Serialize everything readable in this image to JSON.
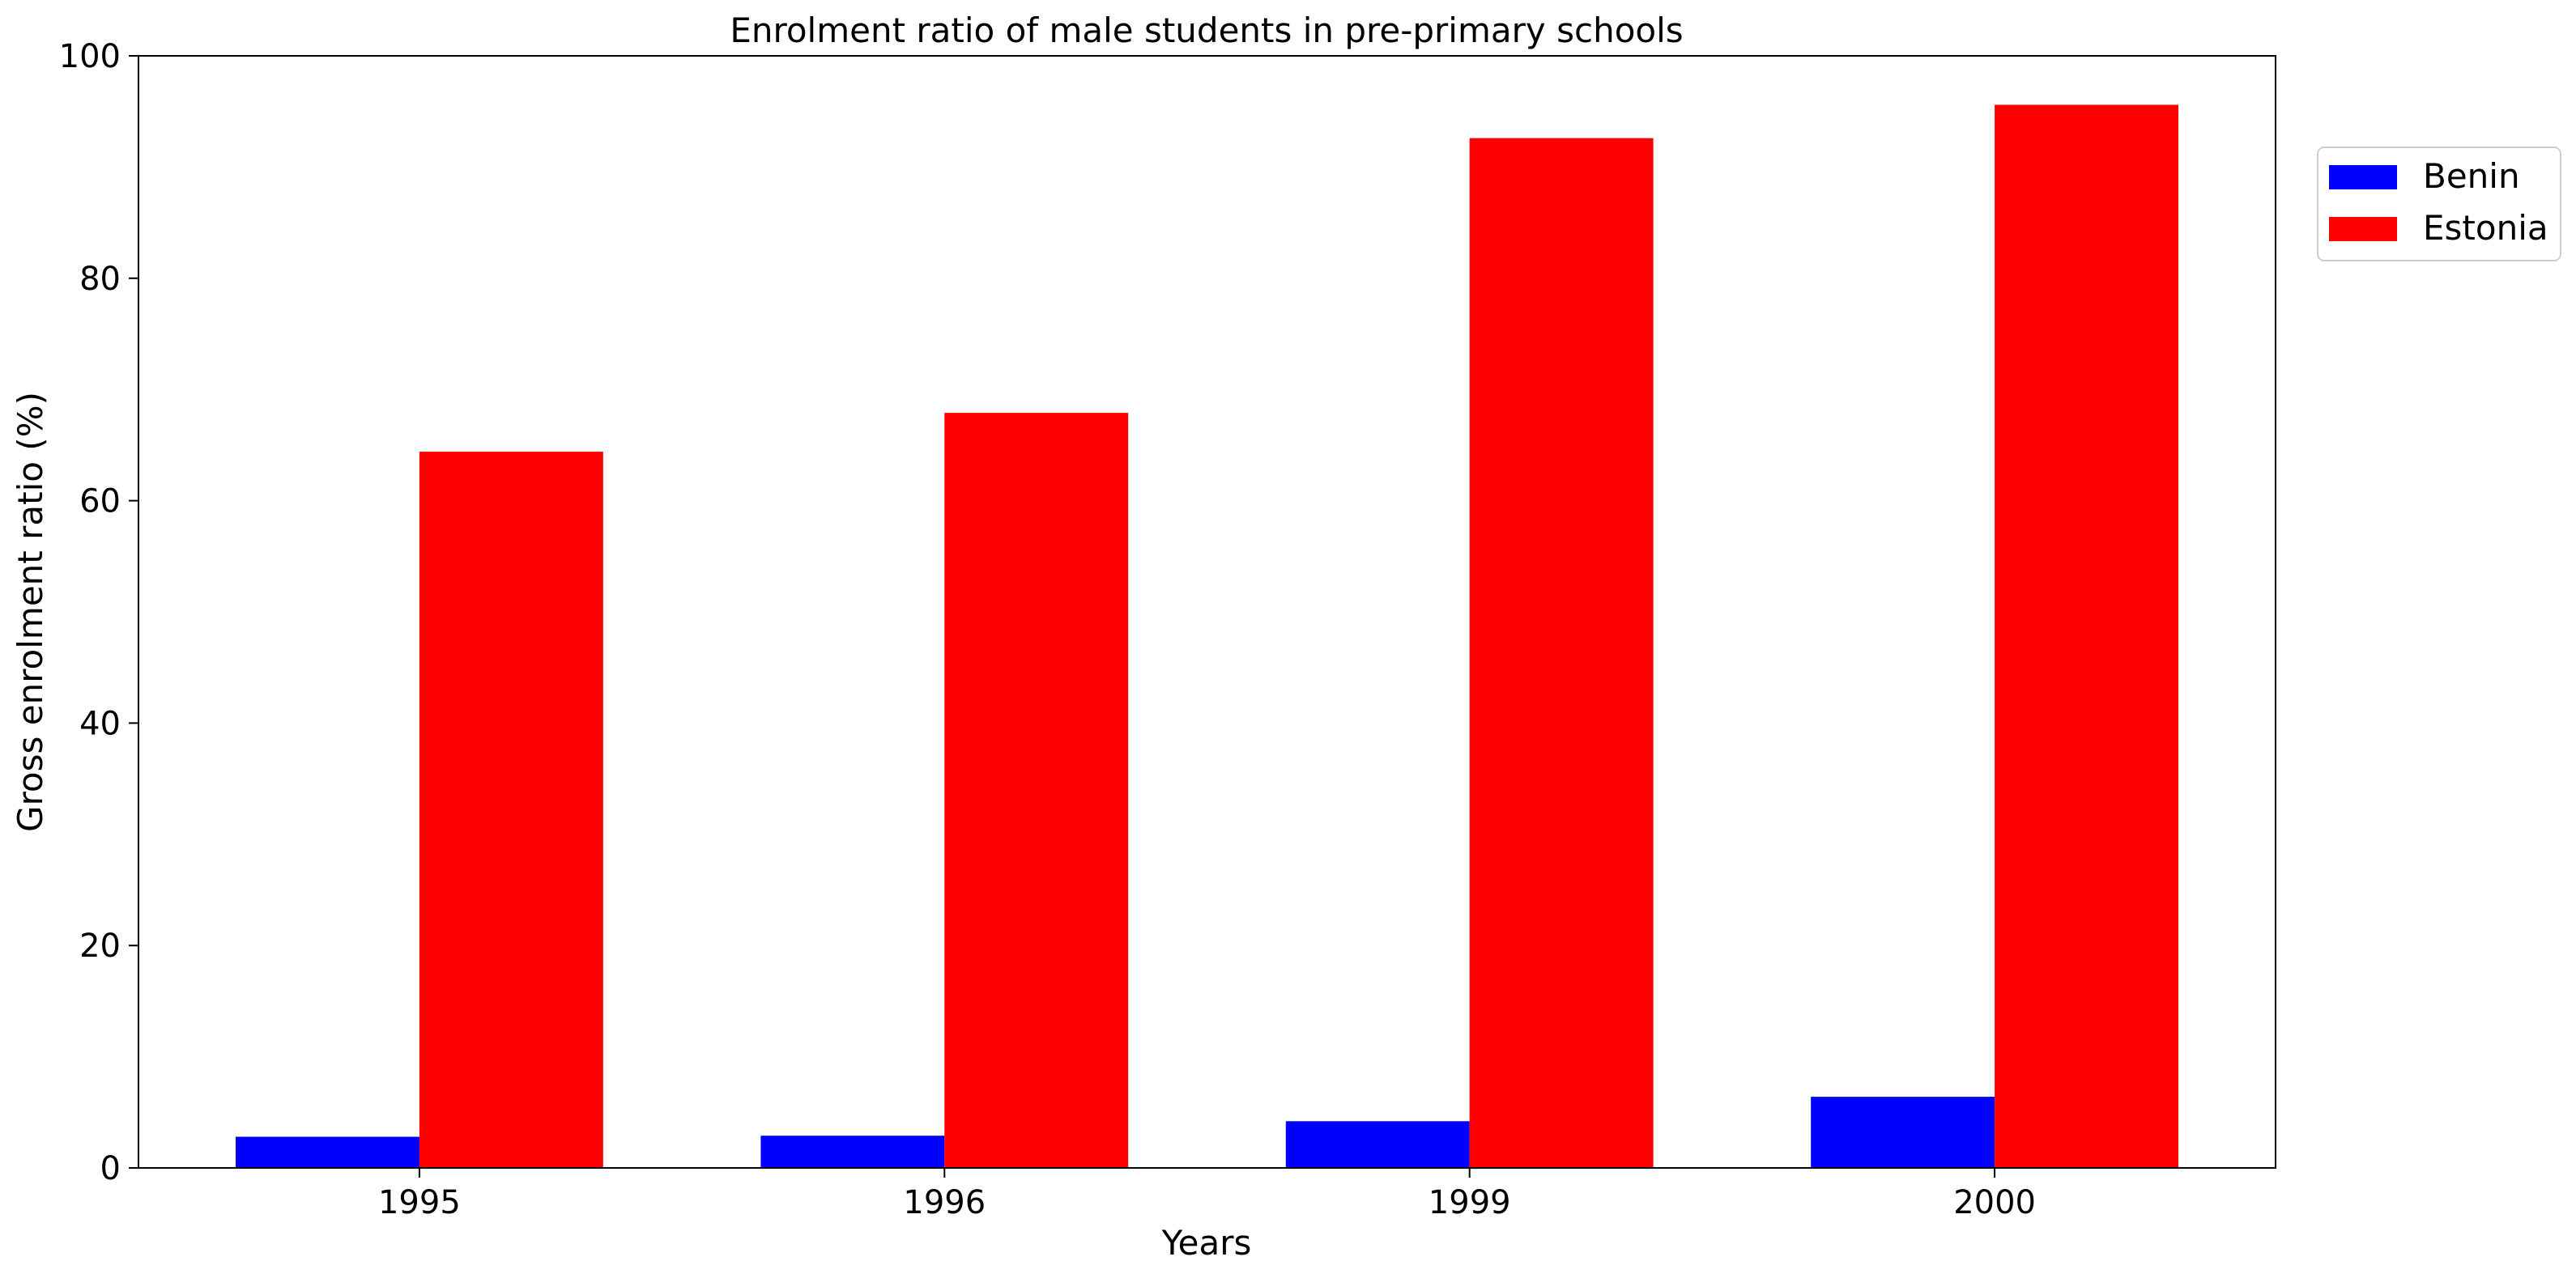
{
  "chart_data": {
    "type": "bar",
    "title": "Enrolment ratio of male students in pre-primary schools",
    "xlabel": "Years",
    "ylabel": "Gross enrolment ratio (%)",
    "categories": [
      "1995",
      "1996",
      "1999",
      "2000"
    ],
    "ylim": [
      0,
      100
    ],
    "yticks": [
      0,
      20,
      40,
      60,
      80,
      100
    ],
    "grid": false,
    "legend_position": "top-right, outside plot",
    "series": [
      {
        "name": "Benin",
        "color": "#0000ff",
        "values": [
          2.8,
          2.9,
          4.2,
          6.4
        ]
      },
      {
        "name": "Estonia",
        "color": "#ff0000",
        "values": [
          64.4,
          67.9,
          92.6,
          95.6
        ]
      }
    ]
  }
}
